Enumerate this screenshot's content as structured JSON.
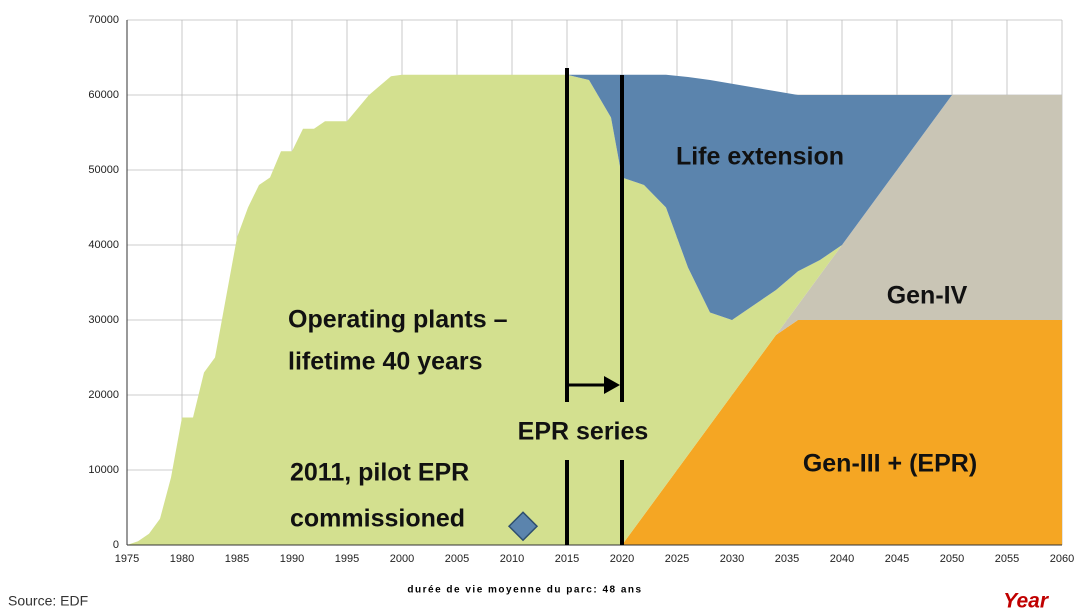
{
  "chart_data": {
    "type": "stacked_area",
    "x": [
      1975,
      1976,
      1977,
      1978,
      1979,
      1980,
      1981,
      1982,
      1983,
      1984,
      1985,
      1986,
      1987,
      1988,
      1989,
      1990,
      1991,
      1992,
      1993,
      1995,
      1997,
      1999,
      2000,
      2015,
      2017,
      2019,
      2020,
      2022,
      2024,
      2026,
      2028,
      2030,
      2032,
      2034,
      2036,
      2038,
      2040,
      2045,
      2050,
      2060
    ],
    "series": [
      {
        "name": "Gen-III + (EPR)",
        "color": "#f5a623",
        "values": [
          0,
          0,
          0,
          0,
          0,
          0,
          0,
          0,
          0,
          0,
          0,
          0,
          0,
          0,
          0,
          0,
          0,
          0,
          0,
          0,
          0,
          0,
          0,
          0,
          0,
          0,
          0,
          4000,
          8000,
          12000,
          16000,
          20000,
          24000,
          28000,
          30000,
          30000,
          30000,
          30000,
          30000,
          30000
        ]
      },
      {
        "name": "Gen-IV",
        "color": "#c9c5b5",
        "values": [
          0,
          0,
          0,
          0,
          0,
          0,
          0,
          0,
          0,
          0,
          0,
          0,
          0,
          0,
          0,
          0,
          0,
          0,
          0,
          0,
          0,
          0,
          0,
          0,
          0,
          0,
          0,
          0,
          0,
          0,
          0,
          0,
          0,
          0,
          2000,
          6000,
          10000,
          20000,
          30000,
          30000
        ]
      },
      {
        "color": "#d3e08f",
        "values": [
          0,
          500,
          1500,
          3500,
          9000,
          17000,
          17000,
          23000,
          25000,
          33000,
          41000,
          45000,
          48000,
          49000,
          52500,
          52500,
          55500,
          55500,
          56500,
          56500,
          60000,
          62500,
          62700,
          62700,
          62000,
          57000,
          49000,
          44000,
          37000,
          25000,
          15000,
          10000,
          8000,
          6000,
          4500,
          2000,
          0,
          0,
          0,
          0
        ]
      },
      {
        "name": "Life extension",
        "color": "#5b84ad",
        "values": [
          0,
          0,
          0,
          0,
          0,
          0,
          0,
          0,
          0,
          0,
          0,
          0,
          0,
          0,
          0,
          0,
          0,
          0,
          0,
          0,
          0,
          0,
          0,
          0,
          700,
          5700,
          13700,
          14700,
          17700,
          25400,
          31000,
          31500,
          29000,
          26500,
          23500,
          22000,
          20000,
          10000,
          0,
          0
        ]
      }
    ],
    "annotations": [
      {
        "lines": [
          "Operating plants –",
          "lifetime 40 years"
        ]
      },
      {
        "lines": [
          "EPR series"
        ]
      },
      {
        "lines": [
          "2011, pilot EPR",
          "commissioned"
        ]
      }
    ],
    "pilot_epr": {
      "x": 2011,
      "y": 2500
    },
    "xlim": [
      1975,
      2060
    ],
    "ylim": [
      0,
      70000
    ],
    "xticks": [
      1975,
      1980,
      1985,
      1990,
      1995,
      2000,
      2005,
      2010,
      2015,
      2020,
      2025,
      2030,
      2035,
      2040,
      2045,
      2050,
      2055,
      2060
    ],
    "yticks": [
      0,
      10000,
      20000,
      30000,
      40000,
      50000,
      60000,
      70000
    ],
    "grid": true,
    "source": "Source: EDF",
    "subtitle": "durée de vie moyenne du parc: 48 ans",
    "xlabel": "Year"
  }
}
